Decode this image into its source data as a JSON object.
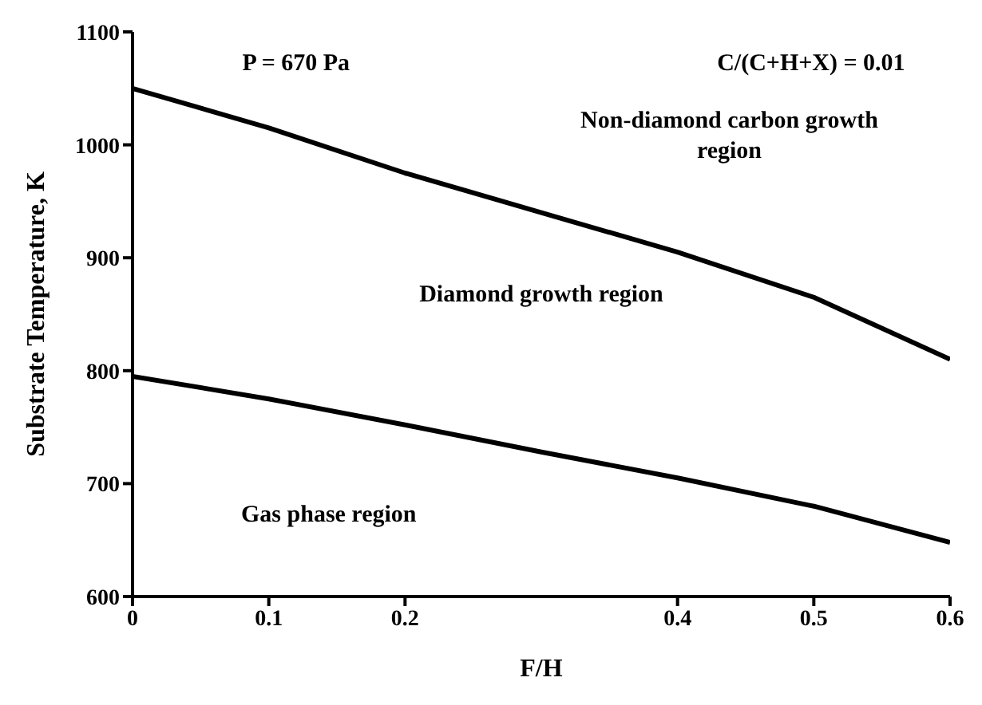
{
  "chart_data": {
    "type": "line",
    "x": [
      0,
      0.1,
      0.2,
      0.3,
      0.4,
      0.5,
      0.6
    ],
    "series": [
      {
        "color": "#000000",
        "values": [
          1050,
          1015,
          975,
          940,
          905,
          865,
          810
        ]
      },
      {
        "color": "#000000",
        "values": [
          795,
          775,
          752,
          728,
          705,
          680,
          648
        ]
      }
    ],
    "xlabel": "F/H",
    "ylabel": "Substrate Temperature, K",
    "xlim": [
      0,
      0.6
    ],
    "xticks": [
      0,
      0.1,
      0.2,
      0.4,
      0.5,
      0.6
    ],
    "ylim": [
      600,
      1100
    ],
    "yticks": [
      600,
      700,
      800,
      900,
      1000,
      1100
    ],
    "annotations": [
      "P = 670 Pa",
      "C/(C+H+X) = 0.01",
      "Non-diamond carbon growth region",
      "Diamond growth region",
      "Gas phase region"
    ],
    "grid": false,
    "legend": false,
    "marker": "none",
    "line_style": "solid"
  }
}
